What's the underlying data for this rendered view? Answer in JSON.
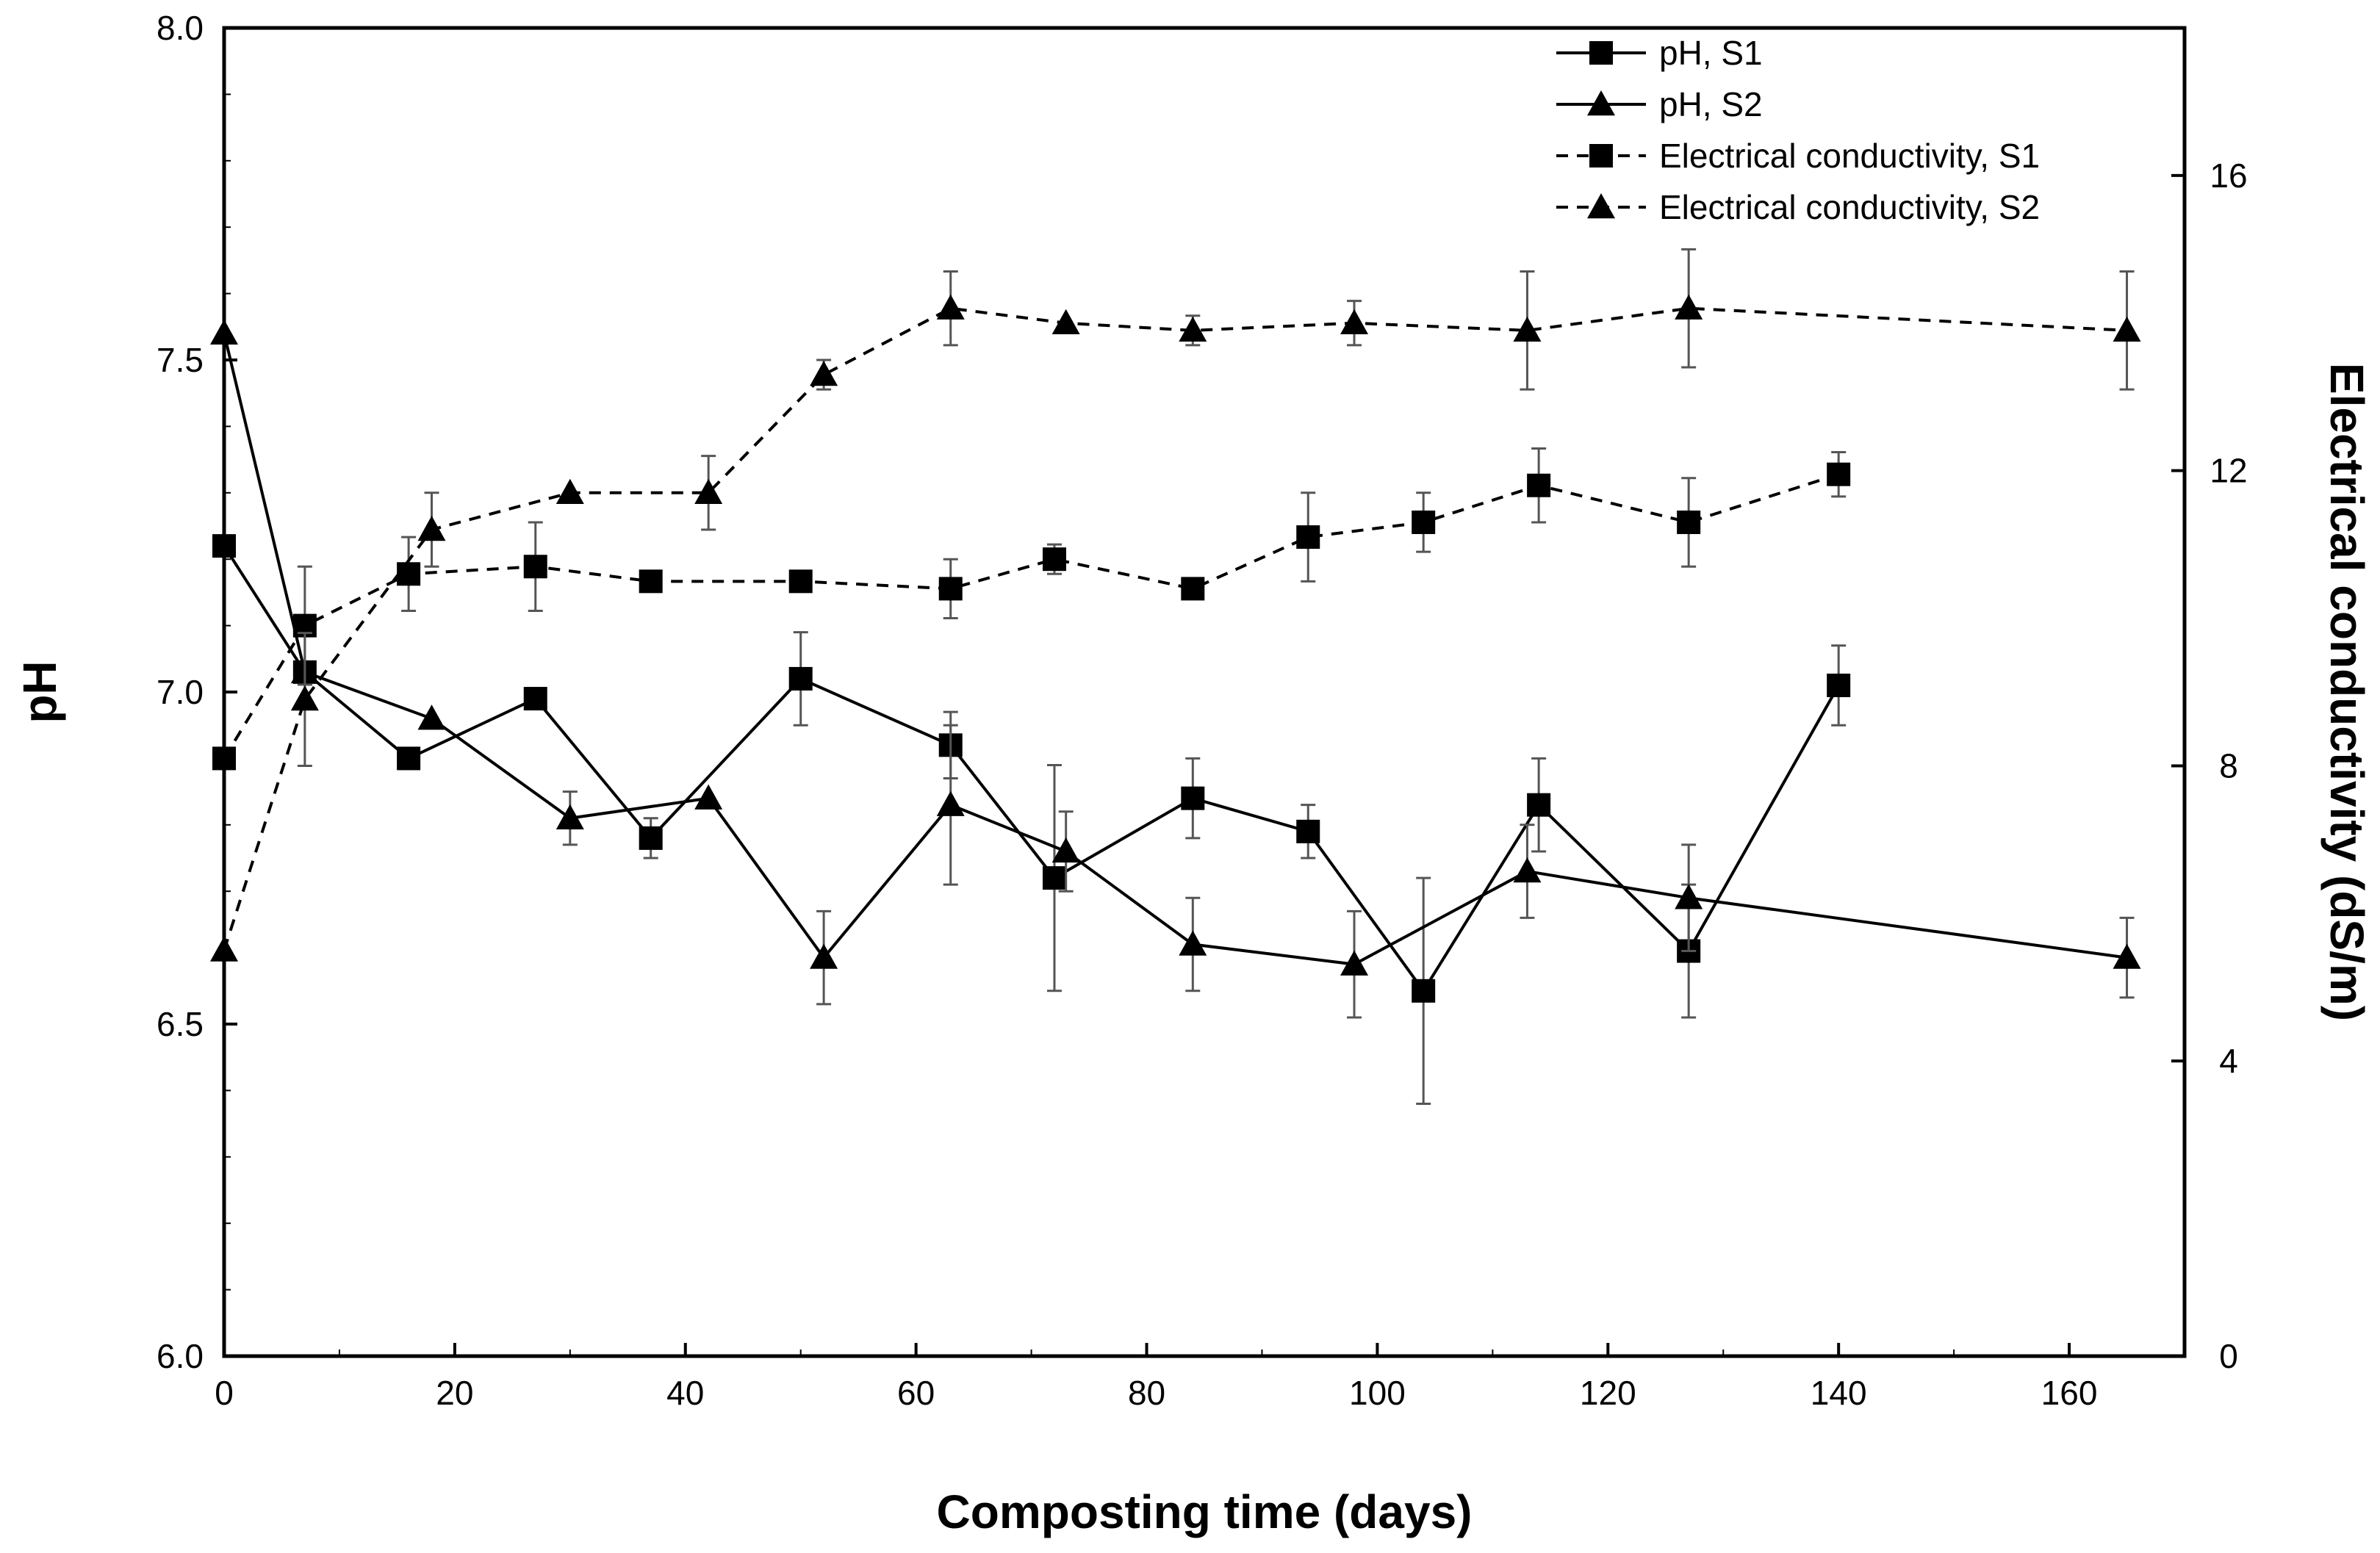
{
  "chart_data": {
    "type": "line",
    "title": "",
    "xlabel": "Composting time (days)",
    "ylabel_left": "pH",
    "ylabel_right": "Electrical conductivity (dS/m)",
    "xlim": [
      0,
      170
    ],
    "ylim_left": [
      6.0,
      8.0
    ],
    "ylim_right": [
      0,
      18
    ],
    "x_ticks": [
      0,
      20,
      40,
      60,
      80,
      100,
      120,
      140,
      160
    ],
    "y_left_ticks": [
      6.0,
      6.5,
      7.0,
      7.5,
      8.0
    ],
    "y_left_tick_labels": [
      "6.0",
      "6.5",
      "7.0",
      "7.5",
      "8.0"
    ],
    "y_right_ticks": [
      0,
      4,
      8,
      12,
      16
    ],
    "grid": false,
    "legend_position": "top-right",
    "series": [
      {
        "name": "pH, S1",
        "axis": "left",
        "marker": "square",
        "dash": "solid",
        "x": [
          0,
          7,
          16,
          27,
          37,
          50,
          63,
          72,
          84,
          94,
          104,
          114,
          127,
          140
        ],
        "y": [
          7.22,
          7.03,
          6.9,
          6.99,
          6.78,
          7.02,
          6.92,
          6.72,
          6.84,
          6.79,
          6.55,
          6.83,
          6.61,
          7.01
        ],
        "err": [
          0,
          0,
          0,
          0,
          0.03,
          0.07,
          0.05,
          0.17,
          0.06,
          0.04,
          0.17,
          0.07,
          0.1,
          0.06
        ]
      },
      {
        "name": "pH, S2",
        "axis": "left",
        "marker": "triangle",
        "dash": "solid",
        "x": [
          0,
          7,
          18,
          30,
          42,
          52,
          63,
          73,
          84,
          98,
          113,
          127,
          165
        ],
        "y": [
          7.54,
          7.03,
          6.96,
          6.81,
          6.84,
          6.6,
          6.83,
          6.76,
          6.62,
          6.59,
          6.73,
          6.69,
          6.6
        ],
        "err": [
          0,
          0,
          0,
          0.04,
          0,
          0.07,
          0.12,
          0.06,
          0.07,
          0.08,
          0.07,
          0.08,
          0.06
        ]
      },
      {
        "name": "Electrical conductivity, S1",
        "axis": "right",
        "marker": "square",
        "dash": "dashed",
        "x": [
          0,
          7,
          16,
          27,
          37,
          50,
          63,
          72,
          84,
          94,
          104,
          114,
          127,
          140
        ],
        "y": [
          8.1,
          9.9,
          10.6,
          10.7,
          10.5,
          10.5,
          10.4,
          10.8,
          10.4,
          11.1,
          11.3,
          11.8,
          11.3,
          11.95
        ],
        "err": [
          0,
          0.8,
          0.5,
          0.6,
          0,
          0,
          0.4,
          0.2,
          0,
          0.6,
          0.4,
          0.5,
          0.6,
          0.3
        ]
      },
      {
        "name": "Electrical conductivity, S2",
        "axis": "right",
        "marker": "triangle",
        "dash": "dashed",
        "x": [
          0,
          7,
          18,
          30,
          42,
          52,
          63,
          73,
          84,
          98,
          113,
          127,
          165
        ],
        "y": [
          5.5,
          8.9,
          11.2,
          11.7,
          11.7,
          13.3,
          14.2,
          14.0,
          13.9,
          14.0,
          13.9,
          14.2,
          13.9
        ],
        "err": [
          0,
          0.9,
          0.5,
          0,
          0.5,
          0.2,
          0.5,
          0,
          0.2,
          0.3,
          0.8,
          0.8,
          0.8
        ]
      }
    ]
  }
}
